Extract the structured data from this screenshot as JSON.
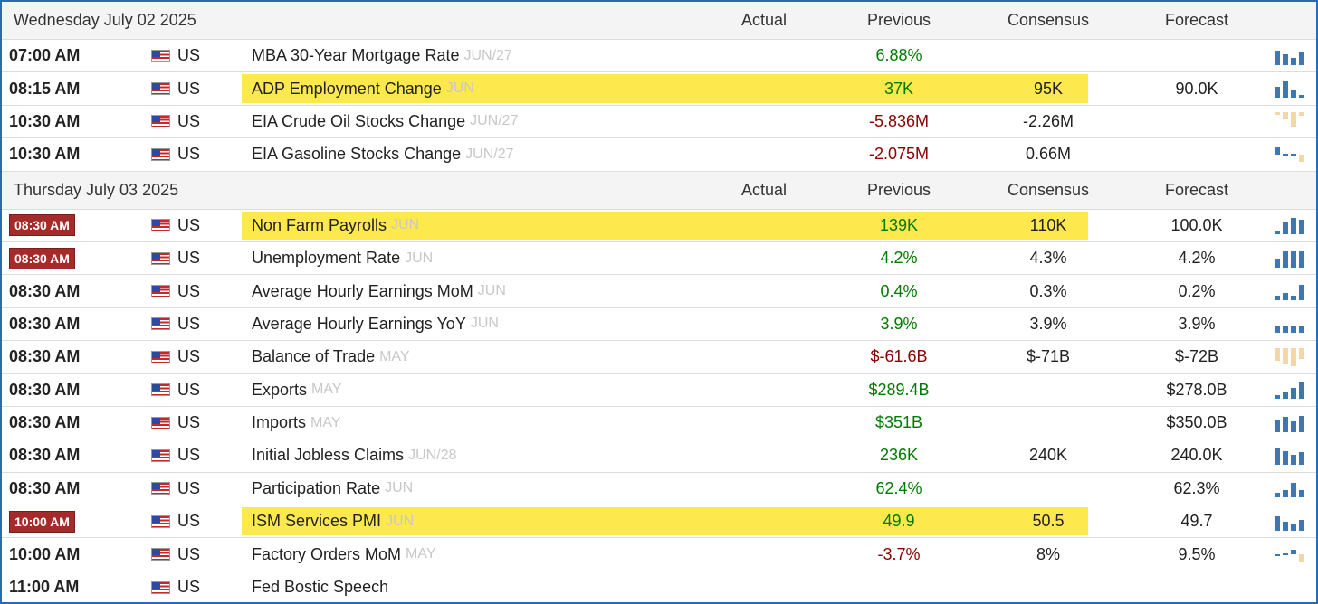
{
  "sections": [
    {
      "date": "Wednesday July 02 2025",
      "headers": {
        "actual": "Actual",
        "previous": "Previous",
        "consensus": "Consensus",
        "forecast": "Forecast"
      },
      "rows": [
        {
          "time": "07:00 AM",
          "country": "US",
          "event": "MBA 30-Year Mortgage Rate",
          "period": "JUN/27",
          "previous": "6.88%",
          "consensus": "",
          "forecast": ""
        },
        {
          "time": "08:15 AM",
          "country": "US",
          "event": "ADP Employment Change",
          "period": "JUN",
          "previous": "37K",
          "consensus": "95K",
          "forecast": "90.0K"
        },
        {
          "time": "10:30 AM",
          "country": "US",
          "event": "EIA Crude Oil Stocks Change",
          "period": "JUN/27",
          "previous": "-5.836M",
          "consensus": "-2.26M",
          "forecast": ""
        },
        {
          "time": "10:30 AM",
          "country": "US",
          "event": "EIA Gasoline Stocks Change",
          "period": "JUN/27",
          "previous": "-2.075M",
          "consensus": "0.66M",
          "forecast": ""
        }
      ]
    },
    {
      "date": "Thursday July 03 2025",
      "headers": {
        "actual": "Actual",
        "previous": "Previous",
        "consensus": "Consensus",
        "forecast": "Forecast"
      },
      "rows": [
        {
          "time": "08:30 AM",
          "country": "US",
          "event": "Non Farm Payrolls",
          "period": "JUN",
          "previous": "139K",
          "consensus": "110K",
          "forecast": "100.0K"
        },
        {
          "time": "08:30 AM",
          "country": "US",
          "event": "Unemployment Rate",
          "period": "JUN",
          "previous": "4.2%",
          "consensus": "4.3%",
          "forecast": "4.2%"
        },
        {
          "time": "08:30 AM",
          "country": "US",
          "event": "Average Hourly Earnings MoM",
          "period": "JUN",
          "previous": "0.4%",
          "consensus": "0.3%",
          "forecast": "0.2%"
        },
        {
          "time": "08:30 AM",
          "country": "US",
          "event": "Average Hourly Earnings YoY",
          "period": "JUN",
          "previous": "3.9%",
          "consensus": "3.9%",
          "forecast": "3.9%"
        },
        {
          "time": "08:30 AM",
          "country": "US",
          "event": "Balance of Trade",
          "period": "MAY",
          "previous": "$-61.6B",
          "consensus": "$-71B",
          "forecast": "$-72B"
        },
        {
          "time": "08:30 AM",
          "country": "US",
          "event": "Exports",
          "period": "MAY",
          "previous": "$289.4B",
          "consensus": "",
          "forecast": "$278.0B"
        },
        {
          "time": "08:30 AM",
          "country": "US",
          "event": "Imports",
          "period": "MAY",
          "previous": "$351B",
          "consensus": "",
          "forecast": "$350.0B"
        },
        {
          "time": "08:30 AM",
          "country": "US",
          "event": "Initial Jobless Claims",
          "period": "JUN/28",
          "previous": "236K",
          "consensus": "240K",
          "forecast": "240.0K"
        },
        {
          "time": "08:30 AM",
          "country": "US",
          "event": "Participation Rate",
          "period": "JUN",
          "previous": "62.4%",
          "consensus": "",
          "forecast": "62.3%"
        },
        {
          "time": "10:00 AM",
          "country": "US",
          "event": "ISM Services PMI",
          "period": "JUN",
          "previous": "49.9",
          "consensus": "50.5",
          "forecast": "49.7"
        },
        {
          "time": "10:00 AM",
          "country": "US",
          "event": "Factory Orders MoM",
          "period": "MAY",
          "previous": "-3.7%",
          "consensus": "8%",
          "forecast": "9.5%"
        },
        {
          "time": "11:00 AM",
          "country": "US",
          "event": "Fed Bostic Speech",
          "period": "",
          "previous": "",
          "consensus": "",
          "forecast": ""
        }
      ]
    }
  ],
  "colors": {
    "highlight": "#fde84d",
    "badge": "#a52a2a",
    "positive": "#007a00",
    "negative": "#8b0000",
    "sparkline": "#3a78b5",
    "sparkline_negative": "#f2d8a8"
  },
  "icons": {
    "flag": "us-flag-icon",
    "chart": "sparkline-chart-icon"
  }
}
